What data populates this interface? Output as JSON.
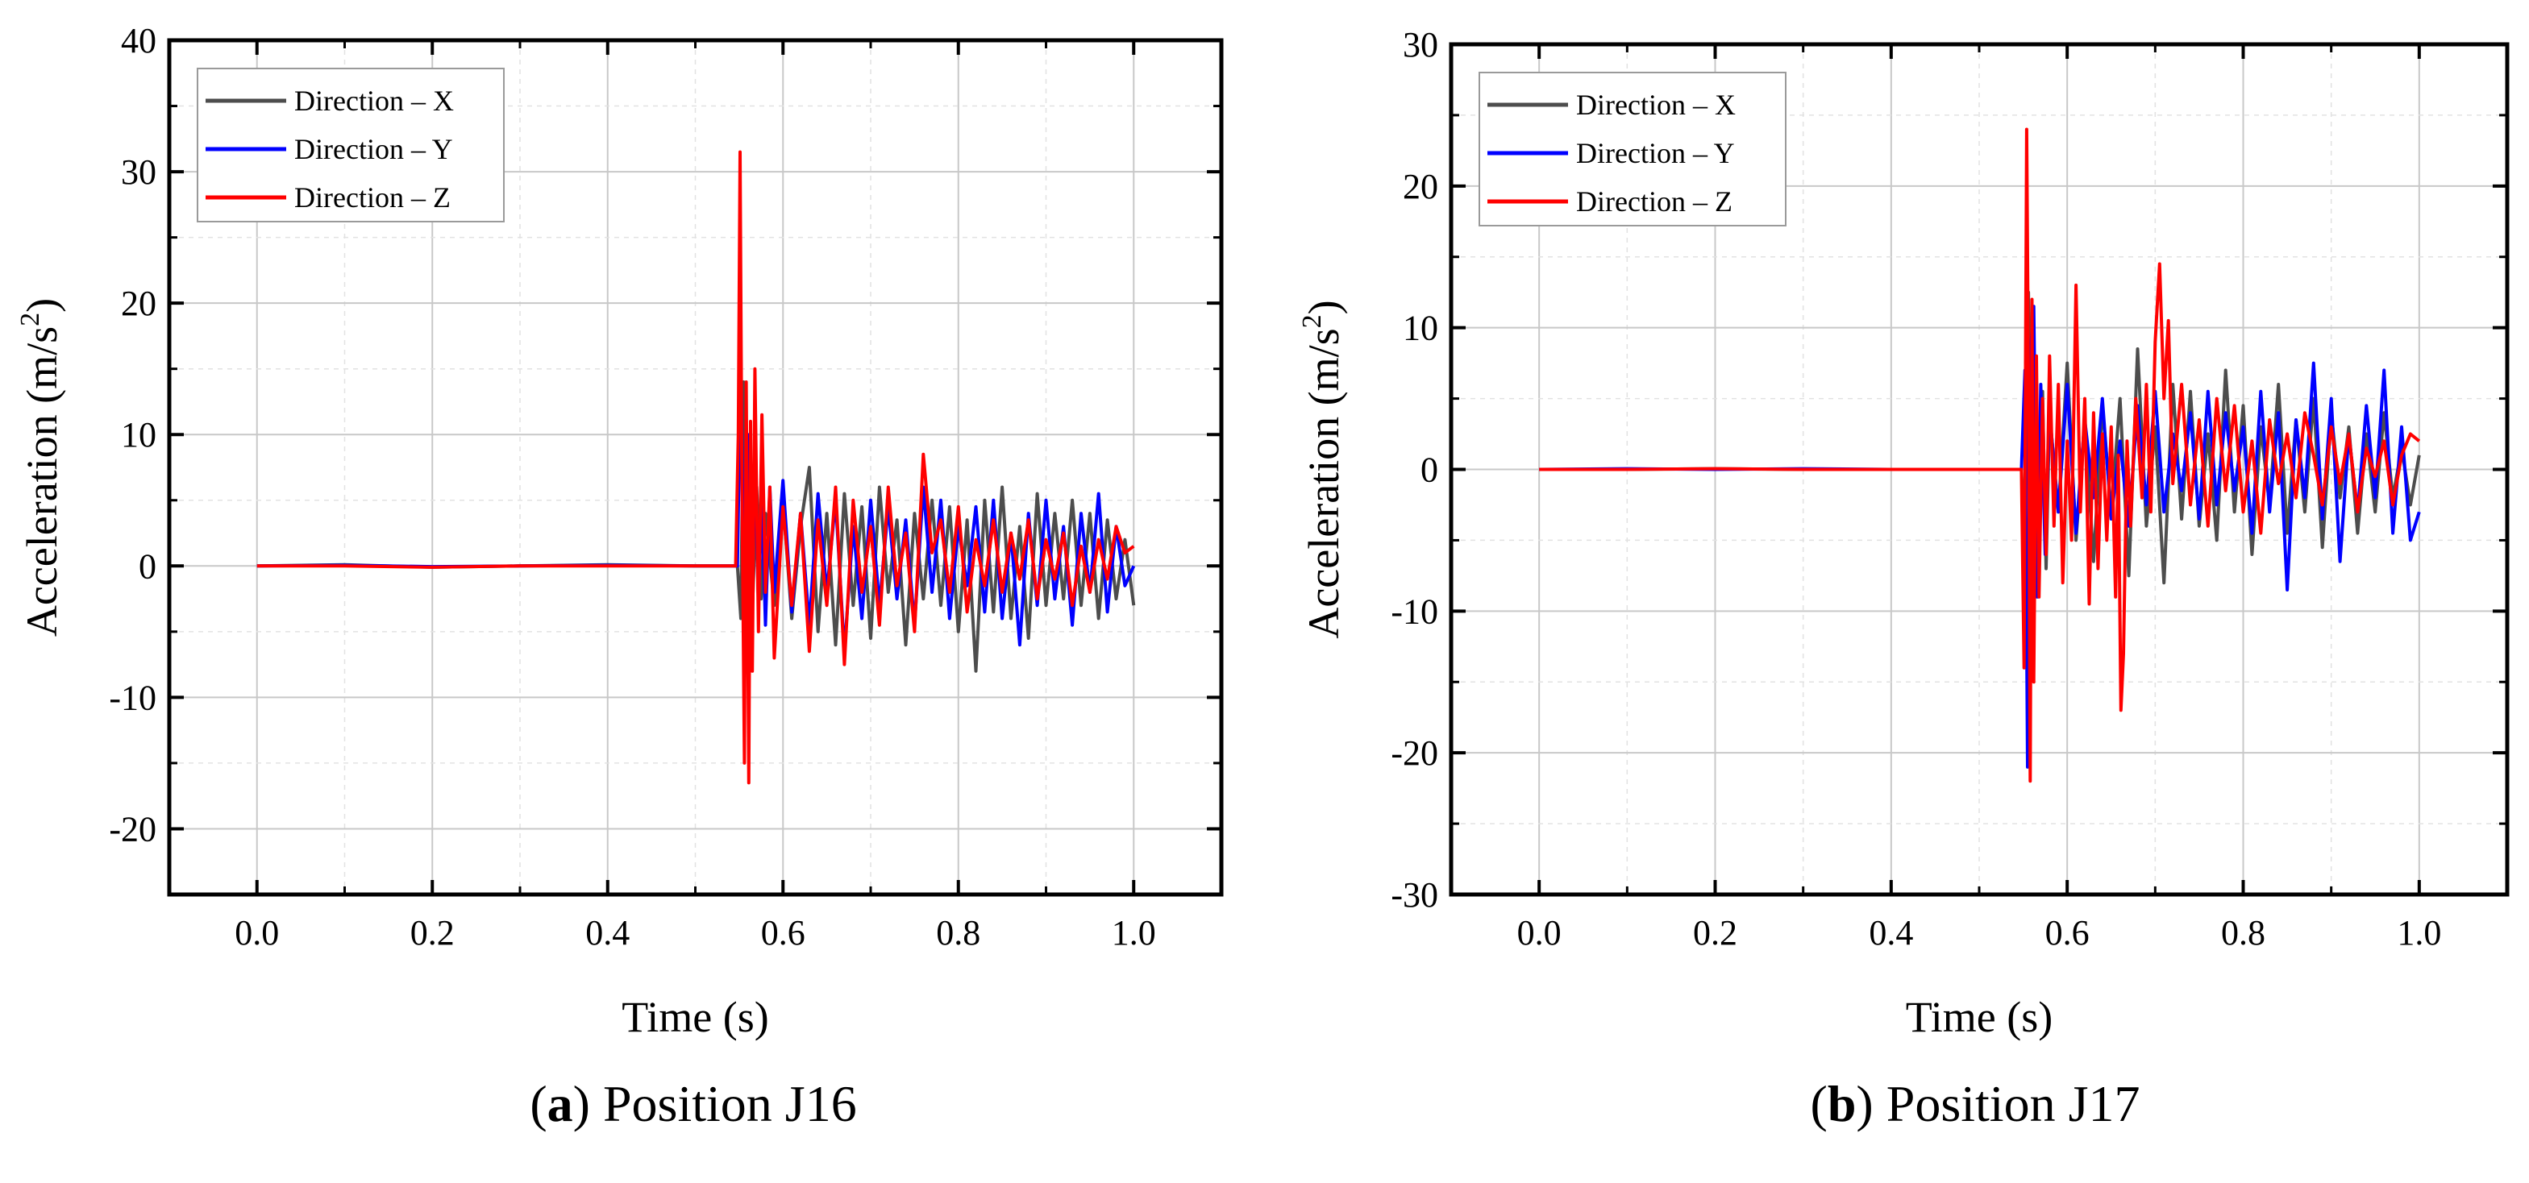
{
  "figure": {
    "panels": [
      {
        "caption_letter": "a",
        "caption_open": "(",
        "caption_close": ")",
        "caption_text": "Position J16"
      },
      {
        "caption_letter": "b",
        "caption_open": "(",
        "caption_close": ")",
        "caption_text": "Position J17"
      }
    ]
  },
  "chart_data": [
    {
      "type": "line",
      "title": "(a) Position J16",
      "xlabel": "Time (s)",
      "ylabel_main": "Acceleration (m/s",
      "ylabel_sup": "2",
      "ylabel_close": ")",
      "xlim": [
        -0.1,
        1.1
      ],
      "ylim": [
        -25,
        40
      ],
      "xticks": [
        0.0,
        0.2,
        0.4,
        0.6,
        0.8,
        1.0
      ],
      "xtick_labels": [
        "0.0",
        "0.2",
        "0.4",
        "0.6",
        "0.8",
        "1.0"
      ],
      "yticks": [
        -20,
        -10,
        0,
        10,
        20,
        30,
        40
      ],
      "ytick_labels": [
        "-20",
        "-10",
        "0",
        "10",
        "20",
        "30",
        "40"
      ],
      "grid": true,
      "legend_position": "top-left",
      "series": [
        {
          "name": "Direction – X",
          "color": "#4d4d4d",
          "x": [
            0.0,
            0.1,
            0.2,
            0.3,
            0.4,
            0.5,
            0.548,
            0.552,
            0.555,
            0.558,
            0.561,
            0.565,
            0.57,
            0.575,
            0.58,
            0.59,
            0.6,
            0.61,
            0.62,
            0.63,
            0.64,
            0.65,
            0.66,
            0.67,
            0.68,
            0.69,
            0.7,
            0.71,
            0.72,
            0.73,
            0.74,
            0.75,
            0.76,
            0.77,
            0.78,
            0.79,
            0.8,
            0.81,
            0.82,
            0.83,
            0.84,
            0.85,
            0.86,
            0.87,
            0.88,
            0.89,
            0.9,
            0.91,
            0.92,
            0.93,
            0.94,
            0.95,
            0.96,
            0.97,
            0.98,
            0.99,
            1.0
          ],
          "y": [
            0.0,
            0.1,
            -0.1,
            0.0,
            0.1,
            0.0,
            0.0,
            -4.0,
            14.0,
            -5.0,
            8.0,
            -3.5,
            6.0,
            -2.5,
            4.0,
            -3.0,
            5.0,
            -4.0,
            3.0,
            7.5,
            -5.0,
            4.0,
            -6.0,
            5.5,
            -3.0,
            4.5,
            -5.5,
            6.0,
            -2.0,
            3.5,
            -6.0,
            4.0,
            -2.5,
            5.0,
            -3.0,
            4.5,
            -5.0,
            3.5,
            -8.0,
            5.0,
            -3.5,
            6.0,
            -4.0,
            3.0,
            -5.5,
            5.5,
            -3.0,
            4.0,
            -2.5,
            5.0,
            -3.0,
            4.0,
            -4.0,
            3.5,
            -2.5,
            2.0,
            -3.0
          ]
        },
        {
          "name": "Direction – Y",
          "color": "#0000ff",
          "x": [
            0.0,
            0.1,
            0.2,
            0.3,
            0.4,
            0.5,
            0.548,
            0.552,
            0.556,
            0.56,
            0.564,
            0.568,
            0.572,
            0.576,
            0.58,
            0.585,
            0.59,
            0.6,
            0.61,
            0.62,
            0.63,
            0.64,
            0.65,
            0.66,
            0.67,
            0.68,
            0.69,
            0.7,
            0.71,
            0.72,
            0.73,
            0.74,
            0.75,
            0.76,
            0.77,
            0.78,
            0.79,
            0.8,
            0.81,
            0.82,
            0.83,
            0.84,
            0.85,
            0.86,
            0.87,
            0.88,
            0.89,
            0.9,
            0.91,
            0.92,
            0.93,
            0.94,
            0.95,
            0.96,
            0.97,
            0.98,
            0.99,
            1.0
          ],
          "y": [
            0.0,
            0.05,
            -0.05,
            0.0,
            0.05,
            0.0,
            0.0,
            16.0,
            -6.0,
            10.0,
            -4.0,
            8.0,
            -3.0,
            5.0,
            -4.5,
            6.0,
            -2.0,
            6.5,
            -3.5,
            4.0,
            -4.5,
            5.5,
            -2.0,
            5.0,
            -6.5,
            3.0,
            -4.0,
            5.0,
            -3.0,
            4.5,
            -2.5,
            3.5,
            -4.5,
            6.0,
            -2.0,
            5.0,
            -4.0,
            3.0,
            -1.5,
            4.5,
            -3.5,
            5.0,
            -4.0,
            2.5,
            -6.0,
            4.0,
            -3.0,
            5.0,
            -2.5,
            3.0,
            -4.5,
            4.0,
            -2.0,
            5.5,
            -3.5,
            3.0,
            -1.5,
            0.0
          ]
        },
        {
          "name": "Direction – Z",
          "color": "#ff0000",
          "x": [
            0.0,
            0.1,
            0.2,
            0.3,
            0.4,
            0.5,
            0.546,
            0.549,
            0.551,
            0.553,
            0.556,
            0.558,
            0.561,
            0.563,
            0.565,
            0.568,
            0.572,
            0.576,
            0.58,
            0.585,
            0.59,
            0.6,
            0.61,
            0.62,
            0.63,
            0.64,
            0.65,
            0.66,
            0.67,
            0.68,
            0.69,
            0.7,
            0.71,
            0.72,
            0.73,
            0.74,
            0.75,
            0.76,
            0.77,
            0.78,
            0.79,
            0.8,
            0.81,
            0.82,
            0.83,
            0.84,
            0.85,
            0.86,
            0.87,
            0.88,
            0.89,
            0.9,
            0.91,
            0.92,
            0.93,
            0.94,
            0.95,
            0.96,
            0.97,
            0.98,
            0.99,
            1.0
          ],
          "y": [
            0.0,
            0.0,
            -0.1,
            0.0,
            0.0,
            0.0,
            0.0,
            10.0,
            31.5,
            8.0,
            -15.0,
            14.0,
            -16.5,
            11.0,
            -8.0,
            15.0,
            -5.0,
            11.5,
            -2.0,
            6.0,
            -7.0,
            4.5,
            -3.0,
            4.0,
            -6.5,
            3.5,
            -3.0,
            6.0,
            -7.5,
            5.0,
            -2.0,
            3.0,
            -4.5,
            6.0,
            -1.5,
            2.5,
            -5.0,
            8.5,
            1.0,
            3.5,
            -2.0,
            4.5,
            -3.5,
            2.0,
            -1.5,
            3.5,
            -2.0,
            2.5,
            -1.0,
            3.5,
            -2.5,
            2.0,
            -1.0,
            2.5,
            -3.0,
            1.5,
            -2.0,
            2.0,
            -1.0,
            3.0,
            1.0,
            1.5
          ]
        }
      ]
    },
    {
      "type": "line",
      "title": "(b) Position J17",
      "xlabel": "Time (s)",
      "ylabel_main": "Acceleration (m/s",
      "ylabel_sup": "2",
      "ylabel_close": ")",
      "xlim": [
        -0.1,
        1.1
      ],
      "ylim": [
        -30,
        30
      ],
      "xticks": [
        0.0,
        0.2,
        0.4,
        0.6,
        0.8,
        1.0
      ],
      "xtick_labels": [
        "0.0",
        "0.2",
        "0.4",
        "0.6",
        "0.8",
        "1.0"
      ],
      "yticks": [
        -30,
        -20,
        -10,
        0,
        10,
        20,
        30
      ],
      "ytick_labels": [
        "-30",
        "-20",
        "-10",
        "0",
        "10",
        "20",
        "30"
      ],
      "grid": true,
      "legend_position": "top-left",
      "series": [
        {
          "name": "Direction – X",
          "color": "#4d4d4d",
          "x": [
            0.0,
            0.1,
            0.2,
            0.3,
            0.4,
            0.5,
            0.548,
            0.552,
            0.556,
            0.56,
            0.564,
            0.568,
            0.572,
            0.576,
            0.58,
            0.59,
            0.6,
            0.61,
            0.62,
            0.63,
            0.64,
            0.65,
            0.66,
            0.67,
            0.68,
            0.69,
            0.7,
            0.71,
            0.72,
            0.73,
            0.74,
            0.75,
            0.76,
            0.77,
            0.78,
            0.79,
            0.8,
            0.81,
            0.82,
            0.83,
            0.84,
            0.85,
            0.86,
            0.87,
            0.88,
            0.89,
            0.9,
            0.91,
            0.92,
            0.93,
            0.94,
            0.95,
            0.96,
            0.97,
            0.98,
            0.99,
            1.0
          ],
          "y": [
            0.0,
            0.0,
            0.05,
            0.0,
            0.0,
            0.0,
            0.0,
            -6.0,
            12.5,
            -8.0,
            7.0,
            -4.0,
            5.5,
            -7.0,
            4.0,
            -3.0,
            7.5,
            -5.0,
            3.5,
            -6.5,
            4.5,
            -3.0,
            5.0,
            -7.5,
            8.5,
            -4.0,
            3.0,
            -8.0,
            6.0,
            -3.5,
            5.5,
            -4.0,
            2.5,
            -5.0,
            7.0,
            -3.0,
            4.5,
            -6.0,
            3.0,
            -2.5,
            6.0,
            -4.5,
            3.5,
            -3.0,
            5.0,
            -5.5,
            4.0,
            -2.0,
            3.0,
            -4.5,
            2.5,
            -3.0,
            4.0,
            -2.0,
            1.5,
            -2.5,
            1.0
          ]
        },
        {
          "name": "Direction – Y",
          "color": "#0000ff",
          "x": [
            0.0,
            0.1,
            0.2,
            0.3,
            0.4,
            0.5,
            0.548,
            0.552,
            0.555,
            0.558,
            0.562,
            0.566,
            0.57,
            0.575,
            0.58,
            0.59,
            0.6,
            0.61,
            0.62,
            0.63,
            0.64,
            0.65,
            0.66,
            0.67,
            0.68,
            0.69,
            0.7,
            0.71,
            0.72,
            0.73,
            0.74,
            0.75,
            0.76,
            0.77,
            0.78,
            0.79,
            0.8,
            0.81,
            0.82,
            0.83,
            0.84,
            0.85,
            0.86,
            0.87,
            0.88,
            0.89,
            0.9,
            0.91,
            0.92,
            0.93,
            0.94,
            0.95,
            0.96,
            0.97,
            0.98,
            0.99,
            1.0
          ],
          "y": [
            0.0,
            0.05,
            0.0,
            0.05,
            0.0,
            0.0,
            0.0,
            7.0,
            -21.0,
            8.0,
            11.5,
            -9.0,
            6.0,
            -6.0,
            4.0,
            -3.0,
            6.0,
            -4.5,
            3.5,
            -2.0,
            5.0,
            -3.5,
            2.0,
            -4.0,
            4.5,
            -2.5,
            5.5,
            -3.0,
            2.5,
            -1.5,
            4.0,
            -3.5,
            5.5,
            -2.5,
            4.0,
            -1.5,
            3.0,
            -4.5,
            5.5,
            -3.0,
            4.0,
            -8.5,
            3.5,
            -2.0,
            7.5,
            -3.5,
            5.0,
            -6.5,
            2.5,
            -3.0,
            4.5,
            -2.0,
            7.0,
            -4.5,
            3.0,
            -5.0,
            -3.0
          ]
        },
        {
          "name": "Direction – Z",
          "color": "#ff0000",
          "x": [
            0.0,
            0.1,
            0.2,
            0.3,
            0.4,
            0.5,
            0.548,
            0.551,
            0.554,
            0.556,
            0.558,
            0.56,
            0.562,
            0.565,
            0.568,
            0.572,
            0.576,
            0.58,
            0.585,
            0.59,
            0.595,
            0.6,
            0.605,
            0.61,
            0.615,
            0.62,
            0.625,
            0.63,
            0.635,
            0.64,
            0.645,
            0.65,
            0.655,
            0.658,
            0.661,
            0.664,
            0.668,
            0.672,
            0.678,
            0.685,
            0.69,
            0.695,
            0.7,
            0.705,
            0.71,
            0.715,
            0.72,
            0.73,
            0.74,
            0.75,
            0.76,
            0.77,
            0.78,
            0.79,
            0.8,
            0.81,
            0.82,
            0.83,
            0.84,
            0.85,
            0.86,
            0.87,
            0.88,
            0.89,
            0.9,
            0.91,
            0.92,
            0.93,
            0.94,
            0.95,
            0.96,
            0.97,
            0.98,
            0.99,
            1.0
          ],
          "y": [
            0.0,
            0.0,
            0.05,
            0.0,
            0.0,
            0.0,
            0.0,
            -14.0,
            24.0,
            6.0,
            -22.0,
            12.0,
            -15.0,
            8.0,
            -9.0,
            5.0,
            -6.0,
            8.0,
            -4.0,
            6.0,
            -8.0,
            2.0,
            -5.0,
            13.0,
            -3.0,
            5.0,
            -9.5,
            4.0,
            -7.0,
            2.5,
            -5.0,
            3.0,
            -9.0,
            1.0,
            -17.0,
            -13.0,
            2.0,
            -4.0,
            5.0,
            -2.0,
            6.0,
            -3.0,
            9.0,
            14.5,
            5.0,
            10.5,
            -1.0,
            6.0,
            -2.5,
            3.5,
            -4.0,
            5.0,
            -1.5,
            4.5,
            -3.0,
            2.0,
            -4.5,
            3.5,
            -1.0,
            2.5,
            -2.0,
            4.0,
            1.0,
            -2.5,
            3.0,
            -1.0,
            2.5,
            -3.0,
            1.5,
            -0.5,
            2.0,
            -2.5,
            1.0,
            2.5,
            2.0
          ]
        }
      ]
    }
  ]
}
